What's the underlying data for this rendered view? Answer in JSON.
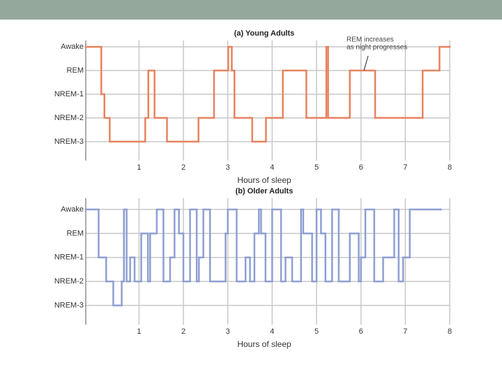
{
  "chart_data": [
    {
      "type": "line",
      "step": "post",
      "grid": true,
      "title": "(a) Young Adults",
      "x_label": "Hours of sleep",
      "annotation": [
        "REM increases",
        "as night progresses"
      ],
      "xlim": [
        -0.2,
        8
      ],
      "xticks": [
        1,
        2,
        3,
        4,
        5,
        6,
        7,
        8
      ],
      "ylim": [
        -0.8,
        4.15
      ],
      "yticks": [
        {
          "value": 4,
          "label": "Awake"
        },
        {
          "value": 3,
          "label": "REM"
        },
        {
          "value": 2,
          "label": "NREM-1"
        },
        {
          "value": 1,
          "label": "NREM-2"
        },
        {
          "value": 0,
          "label": "NREM-3"
        }
      ],
      "series": [
        {
          "color": "#e8825f",
          "x": [
            -0.2,
            0.15,
            0.22,
            0.34,
            1.14,
            1.21,
            1.35,
            1.63,
            2.34,
            2.69,
            3.01,
            3.09,
            3.15,
            3.55,
            3.86,
            4.24,
            4.77,
            5.22,
            5.26,
            5.75,
            6.32,
            7.39,
            7.77,
            8
          ],
          "values": [
            4,
            2,
            1,
            0,
            1,
            3,
            1,
            0,
            1,
            3,
            4,
            3,
            1,
            0,
            1,
            3,
            1,
            4,
            1,
            3,
            1,
            3,
            4,
            4
          ]
        }
      ]
    },
    {
      "type": "line",
      "step": "post",
      "grid": true,
      "title": "(b) Older Adults",
      "x_label": "Hours of sleep",
      "xlim": [
        -0.2,
        8
      ],
      "xticks": [
        1,
        2,
        3,
        4,
        5,
        6,
        7,
        8
      ],
      "ylim": [
        -0.8,
        4.35
      ],
      "yticks": [
        {
          "value": 4,
          "label": "Awake"
        },
        {
          "value": 3,
          "label": "REM"
        },
        {
          "value": 2,
          "label": "NREM-1"
        },
        {
          "value": 1,
          "label": "NREM-2"
        },
        {
          "value": 0,
          "label": "NREM-3"
        }
      ],
      "series": [
        {
          "color": "#8e9fd2",
          "x": [
            -0.2,
            0.09,
            0.26,
            0.42,
            0.61,
            0.66,
            0.72,
            0.8,
            0.9,
            1.05,
            1.2,
            1.25,
            1.4,
            1.55,
            1.7,
            1.8,
            1.9,
            2.0,
            2.15,
            2.3,
            2.35,
            2.45,
            2.6,
            2.95,
            3.0,
            3.2,
            3.4,
            3.5,
            3.6,
            3.7,
            3.75,
            3.85,
            4.0,
            4.2,
            4.3,
            4.45,
            4.65,
            4.7,
            4.9,
            5.0,
            5.1,
            5.2,
            5.35,
            5.5,
            5.75,
            5.95,
            6.0,
            6.1,
            6.3,
            6.5,
            6.75,
            6.85,
            6.95,
            7.1,
            7.8
          ],
          "values": [
            4,
            2,
            1,
            0,
            1,
            4,
            1,
            2,
            1,
            3,
            1,
            3,
            4,
            1,
            2,
            4,
            3,
            1,
            4,
            1,
            2,
            4,
            1,
            3,
            4,
            1,
            2,
            1,
            3,
            4,
            3,
            1,
            4,
            1,
            2,
            1,
            4,
            3,
            1,
            4,
            3,
            1,
            4,
            1,
            3,
            1,
            2,
            4,
            1,
            2,
            4,
            1,
            2,
            4,
            4
          ]
        }
      ]
    }
  ]
}
